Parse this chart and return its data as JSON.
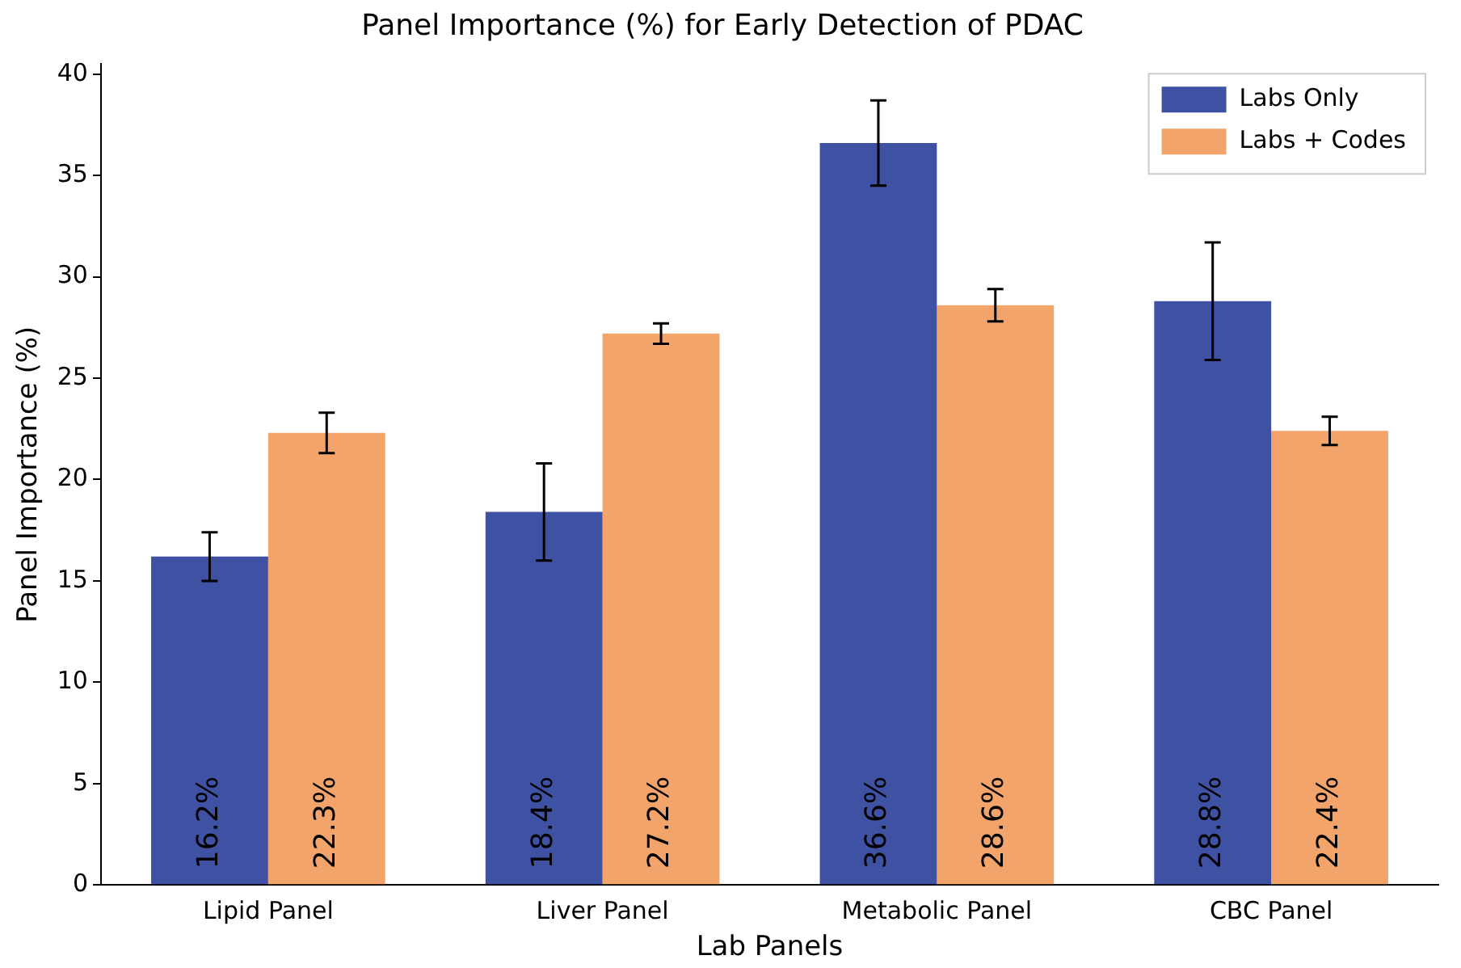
{
  "chart_data": {
    "type": "bar",
    "title": "Panel Importance (%) for Early Detection of PDAC",
    "xlabel": "Lab Panels",
    "ylabel": "Panel Importance (%)",
    "categories": [
      "Lipid Panel",
      "Liver Panel",
      "Metabolic Panel",
      "CBC Panel"
    ],
    "series": [
      {
        "name": "Labs Only",
        "color": "#3f51a3",
        "values": [
          16.2,
          18.4,
          36.6,
          28.8
        ],
        "errors": [
          1.2,
          2.4,
          2.1,
          2.9
        ],
        "value_labels": [
          "16.2%",
          "18.4%",
          "36.6%",
          "28.8%"
        ]
      },
      {
        "name": "Labs + Codes",
        "color": "#f2a46b",
        "values": [
          22.3,
          27.2,
          28.6,
          22.4
        ],
        "errors": [
          1.0,
          0.5,
          0.8,
          0.7
        ],
        "value_labels": [
          "22.3%",
          "27.2%",
          "28.6%",
          "22.4%"
        ]
      }
    ],
    "ylim": [
      0,
      40.5
    ],
    "yticks": [
      0,
      5,
      10,
      15,
      20,
      25,
      30,
      35,
      40
    ],
    "grid": false,
    "legend": "top right"
  }
}
